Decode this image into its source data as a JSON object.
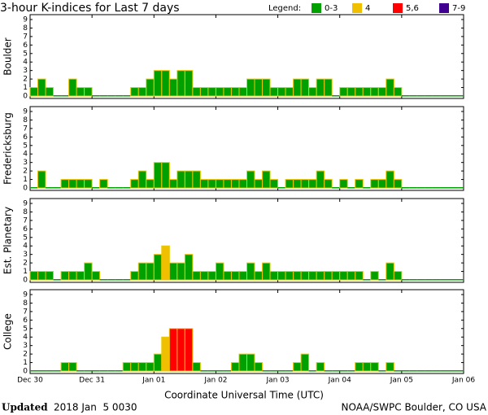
{
  "title": "3-hour K-indices for Last 7 days",
  "legend_title": "Legend:",
  "legend": [
    {
      "label": "0-3",
      "color": "#00a000"
    },
    {
      "label": "4",
      "color": "#f0c000"
    },
    {
      "label": "5,6",
      "color": "#ff0000"
    },
    {
      "label": "7-9",
      "color": "#400090"
    }
  ],
  "xlabel": "Coordinate Universal Time (UTC)",
  "xticklabels": [
    "Dec 30",
    "Dec 31",
    "Jan 01",
    "Jan 02",
    "Jan 03",
    "Jan 04",
    "Jan 05",
    "Jan 06"
  ],
  "footer": {
    "updated_label": "Updated",
    "updated_time": "2018 Jan  5 0030",
    "source": "NOAA/SWPC Boulder, CO USA"
  },
  "chart_data": [
    {
      "type": "bar",
      "ylabel": "Boulder",
      "ylim": [
        0,
        9
      ],
      "yticks": [
        0,
        1,
        2,
        3,
        4,
        5,
        6,
        7,
        8,
        9
      ],
      "values": [
        1,
        2,
        1,
        0,
        0,
        2,
        1,
        1,
        0,
        0,
        0,
        0,
        0,
        1,
        1,
        2,
        3,
        3,
        2,
        3,
        3,
        1,
        1,
        1,
        1,
        1,
        1,
        1,
        2,
        2,
        2,
        1,
        1,
        1,
        2,
        2,
        1,
        2,
        2,
        0,
        1,
        1,
        1,
        1,
        1,
        1,
        2,
        1,
        0,
        0,
        0,
        0,
        0,
        0,
        0,
        0
      ]
    },
    {
      "type": "bar",
      "ylabel": "Fredericksburg",
      "ylim": [
        0,
        9
      ],
      "yticks": [
        0,
        1,
        2,
        3,
        4,
        5,
        6,
        7,
        8,
        9
      ],
      "values": [
        0,
        2,
        0,
        0,
        1,
        1,
        1,
        1,
        0,
        1,
        0,
        0,
        0,
        1,
        2,
        1,
        3,
        3,
        1,
        2,
        2,
        2,
        1,
        1,
        1,
        1,
        1,
        1,
        2,
        1,
        2,
        1,
        0,
        1,
        1,
        1,
        1,
        2,
        1,
        0,
        1,
        0,
        1,
        0,
        1,
        1,
        2,
        1,
        0,
        0,
        0,
        0,
        0,
        0,
        0,
        0
      ]
    },
    {
      "type": "bar",
      "ylabel": "Est. Planetary",
      "ylim": [
        0,
        9
      ],
      "yticks": [
        0,
        1,
        2,
        3,
        4,
        5,
        6,
        7,
        8,
        9
      ],
      "values": [
        1,
        1,
        1,
        0,
        1,
        1,
        1,
        2,
        1,
        0,
        0,
        0,
        0,
        1,
        2,
        2,
        3,
        4,
        2,
        2,
        3,
        1,
        1,
        1,
        2,
        1,
        1,
        1,
        2,
        1,
        2,
        1,
        1,
        1,
        1,
        1,
        1,
        1,
        1,
        1,
        1,
        1,
        1,
        0,
        1,
        0,
        2,
        1,
        0,
        0,
        0,
        0,
        0,
        0,
        0,
        0
      ]
    },
    {
      "type": "bar",
      "ylabel": "College",
      "ylim": [
        0,
        9
      ],
      "yticks": [
        0,
        1,
        2,
        3,
        4,
        5,
        6,
        7,
        8,
        9
      ],
      "values": [
        0,
        0,
        0,
        0,
        1,
        1,
        0,
        0,
        0,
        0,
        0,
        0,
        1,
        1,
        1,
        1,
        2,
        4,
        5,
        5,
        5,
        1,
        0,
        0,
        0,
        0,
        1,
        2,
        2,
        1,
        0,
        0,
        0,
        0,
        1,
        2,
        0,
        1,
        0,
        0,
        0,
        0,
        1,
        1,
        1,
        0,
        1,
        0,
        0,
        0,
        0,
        0,
        0,
        0,
        0,
        0
      ]
    }
  ]
}
